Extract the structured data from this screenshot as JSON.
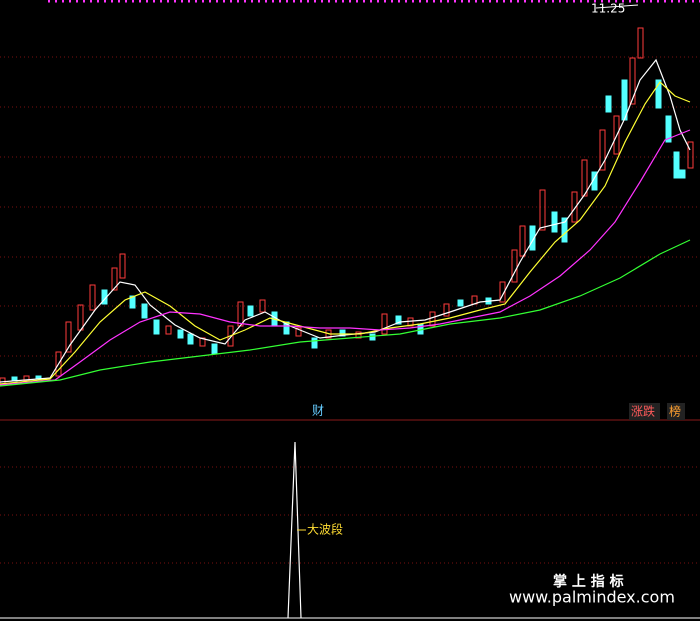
{
  "price_label": "11.25",
  "tabs": {
    "cai": "财",
    "zhangdie": "涨跌",
    "bang": "榜"
  },
  "indicator_label": "大波段",
  "watermark": {
    "title": "掌 上 指 标",
    "url": "www.palmindex.com"
  }
}
